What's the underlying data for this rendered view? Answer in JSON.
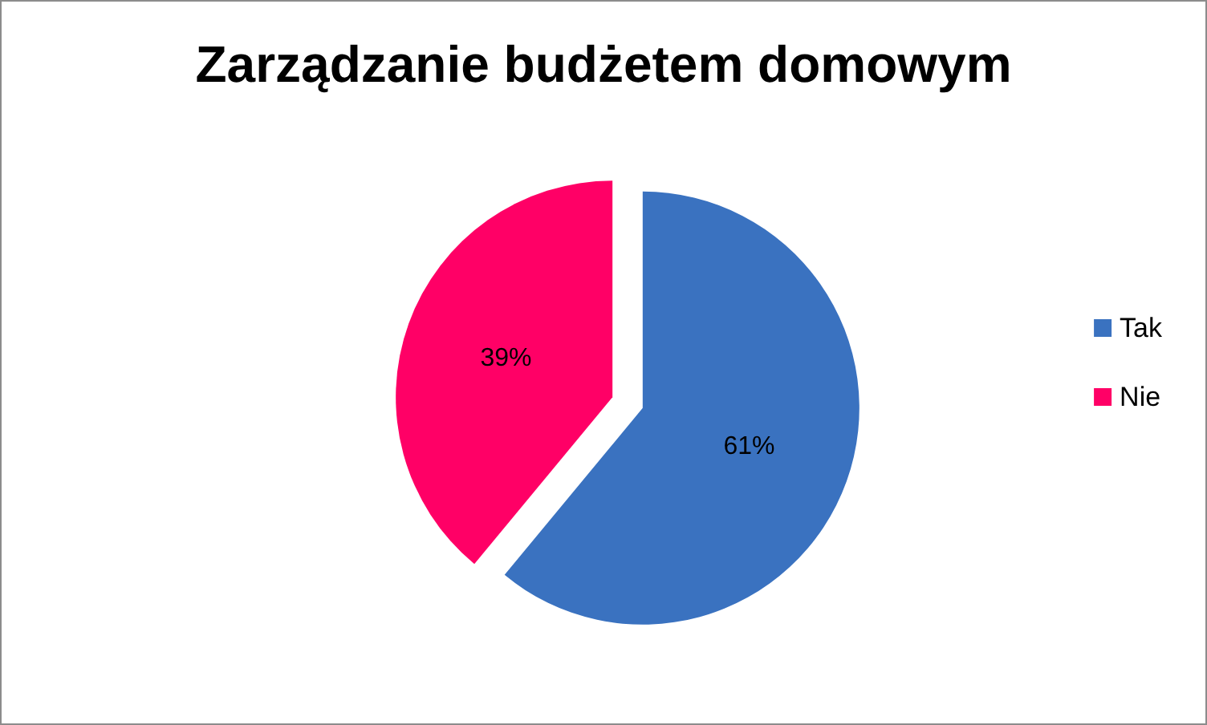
{
  "chart_data": {
    "type": "pie",
    "title": "Zarządzanie budżetem domowym",
    "categories": [
      "Tak",
      "Nie"
    ],
    "values": [
      61,
      39
    ],
    "colors": [
      "#3a72c0",
      "#ff0066"
    ],
    "value_labels": [
      "61%",
      "39%"
    ],
    "legend": "right"
  }
}
